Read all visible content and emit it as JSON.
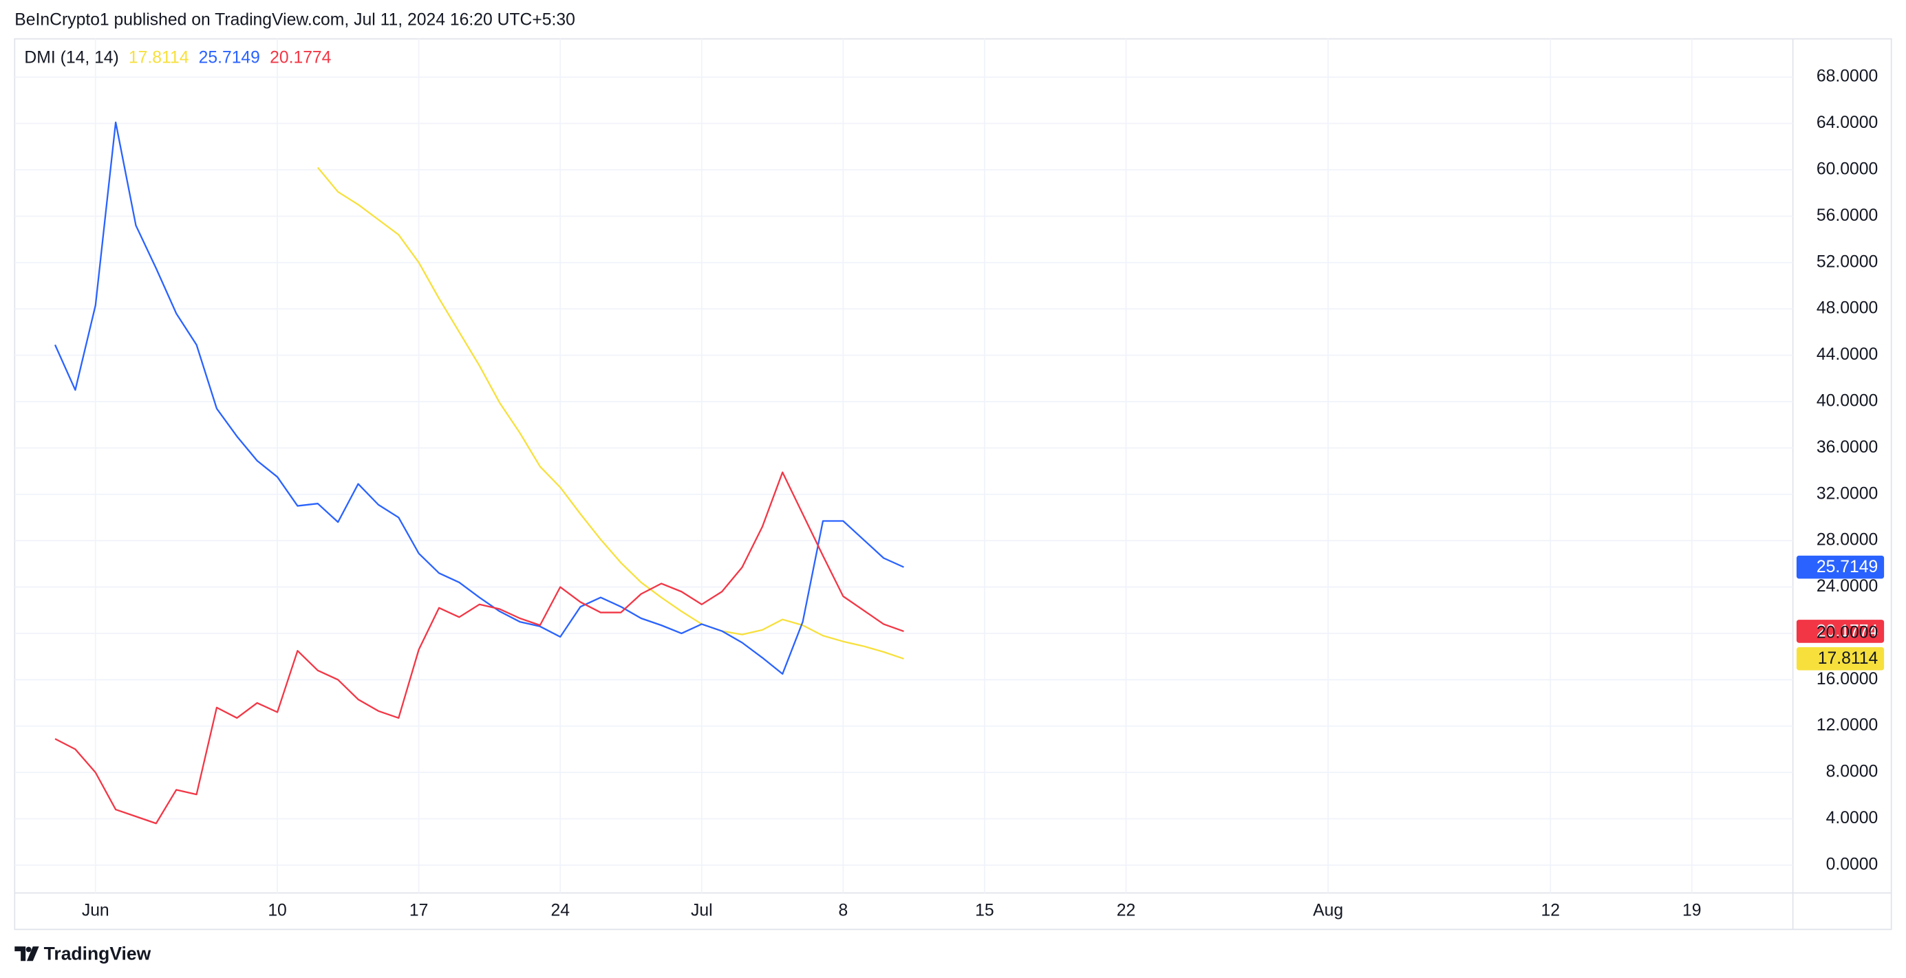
{
  "header": "BeInCrypto1 published on TradingView.com, Jul 11, 2024 16:20 UTC+5:30",
  "footer": "TradingView",
  "chart_data": {
    "type": "line",
    "title": "DMI (14, 14)",
    "x": [
      "May 30",
      "May 31",
      "Jun 1",
      "Jun 2",
      "Jun 3",
      "Jun 4",
      "Jun 5",
      "Jun 6",
      "Jun 7",
      "Jun 8",
      "Jun 9",
      "Jun 10",
      "Jun 11",
      "Jun 12",
      "Jun 13",
      "Jun 14",
      "Jun 15",
      "Jun 16",
      "Jun 17",
      "Jun 18",
      "Jun 19",
      "Jun 20",
      "Jun 21",
      "Jun 22",
      "Jun 23",
      "Jun 24",
      "Jun 25",
      "Jun 26",
      "Jun 27",
      "Jun 28",
      "Jun 29",
      "Jun 30",
      "Jul 1",
      "Jul 2",
      "Jul 3",
      "Jul 4",
      "Jul 5",
      "Jul 6",
      "Jul 7",
      "Jul 8",
      "Jul 9",
      "Jul 10",
      "Jul 11"
    ],
    "series": [
      {
        "color": "#f7e03c",
        "values": [
          null,
          null,
          null,
          null,
          null,
          null,
          null,
          null,
          null,
          null,
          null,
          null,
          null,
          60.2,
          58.1,
          57.0,
          55.7,
          54.4,
          52.0,
          48.9,
          46.0,
          43.1,
          39.9,
          37.3,
          34.4,
          32.6,
          30.3,
          28.1,
          26.1,
          24.4,
          23.1,
          21.9,
          20.8,
          20.2,
          19.9,
          20.3,
          21.2,
          20.7,
          19.8,
          19.3,
          18.9,
          18.4,
          17.8114
        ]
      },
      {
        "color": "#2962ff",
        "values": [
          44.9,
          41.0,
          48.3,
          64.1,
          55.2,
          51.5,
          47.6,
          44.9,
          39.4,
          37.0,
          34.9,
          33.5,
          31.0,
          31.2,
          29.6,
          32.9,
          31.1,
          30.0,
          26.9,
          25.2,
          24.4,
          23.1,
          21.9,
          21.0,
          20.6,
          19.7,
          22.3,
          23.1,
          22.3,
          21.3,
          20.7,
          20.0,
          20.8,
          20.2,
          19.2,
          17.9,
          16.5,
          21.0,
          29.7,
          29.7,
          28.1,
          26.5,
          25.7149
        ]
      },
      {
        "color": "#f23645",
        "values": [
          10.9,
          10.0,
          8.0,
          4.8,
          4.2,
          3.6,
          6.5,
          6.1,
          13.6,
          12.7,
          14.0,
          13.2,
          18.5,
          16.8,
          16.0,
          14.3,
          13.3,
          12.7,
          18.6,
          22.2,
          21.4,
          22.5,
          22.1,
          21.3,
          20.7,
          24.0,
          22.7,
          21.8,
          21.8,
          23.4,
          24.3,
          23.6,
          22.5,
          23.6,
          25.7,
          29.2,
          33.9,
          30.3,
          26.7,
          23.2,
          22.0,
          20.8,
          20.1774
        ]
      }
    ],
    "xlim": [
      "May 28",
      "Aug 24"
    ],
    "xticks": [
      {
        "value": "Jun 1",
        "label": "Jun"
      },
      {
        "value": "Jun 10",
        "label": "10"
      },
      {
        "value": "Jun 17",
        "label": "17"
      },
      {
        "value": "Jun 24",
        "label": "24"
      },
      {
        "value": "Jul 1",
        "label": "Jul"
      },
      {
        "value": "Jul 8",
        "label": "8"
      },
      {
        "value": "Jul 15",
        "label": "15"
      },
      {
        "value": "Jul 22",
        "label": "22"
      },
      {
        "value": "Aug 1",
        "label": "Aug"
      },
      {
        "value": "Aug 12",
        "label": "12"
      },
      {
        "value": "Aug 19",
        "label": "19"
      }
    ],
    "ylim": [
      -2.4,
      71.3
    ],
    "yticks": [
      {
        "value": 0,
        "label": "0.0000"
      },
      {
        "value": 4,
        "label": "4.0000"
      },
      {
        "value": 8,
        "label": "8.0000"
      },
      {
        "value": 12,
        "label": "12.0000"
      },
      {
        "value": 16,
        "label": "16.0000"
      },
      {
        "value": 20,
        "label": "20.0000"
      },
      {
        "value": 24,
        "label": "24.0000"
      },
      {
        "value": 28,
        "label": "28.0000"
      },
      {
        "value": 32,
        "label": "32.0000"
      },
      {
        "value": 36,
        "label": "36.0000"
      },
      {
        "value": 40,
        "label": "40.0000"
      },
      {
        "value": 44,
        "label": "44.0000"
      },
      {
        "value": 48,
        "label": "48.0000"
      },
      {
        "value": 52,
        "label": "52.0000"
      },
      {
        "value": 56,
        "label": "56.0000"
      },
      {
        "value": 60,
        "label": "60.0000"
      },
      {
        "value": 64,
        "label": "64.0000"
      },
      {
        "value": 68,
        "label": "68.0000"
      }
    ],
    "grid": true
  }
}
